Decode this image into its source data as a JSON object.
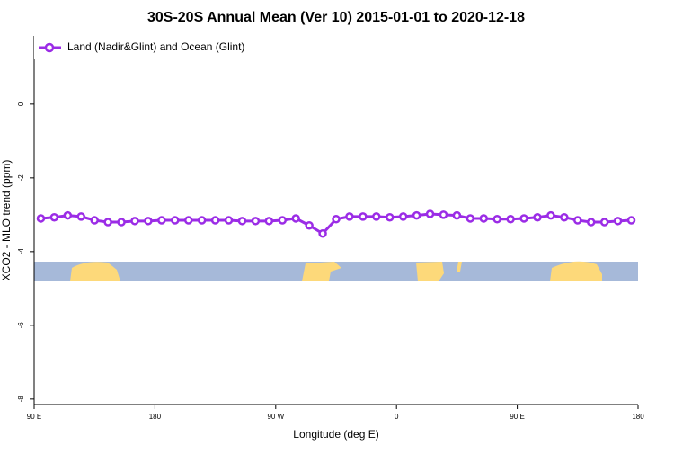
{
  "chart_data": {
    "type": "line",
    "title": "30S-20S Annual Mean (Ver 10)   2015-01-01 to 2020-12-18",
    "xlabel": "Longitude (deg E)",
    "ylabel": "XCO2 - MLO trend (ppm)",
    "x": [
      95,
      105,
      115,
      125,
      135,
      145,
      155,
      165,
      175,
      185,
      195,
      205,
      215,
      225,
      235,
      245,
      255,
      265,
      275,
      285,
      295,
      305,
      315,
      325,
      335,
      345,
      355,
      365,
      375,
      385,
      395,
      405,
      415,
      425,
      435,
      445,
      455,
      465,
      475,
      485,
      495,
      505,
      515,
      525,
      535
    ],
    "series": [
      {
        "name": "Land (Nadir&Glint) and Ocean (Glint)",
        "color": "#9b2ce6",
        "values": [
          -3.1,
          -3.07,
          -3.02,
          -3.05,
          -3.15,
          -3.2,
          -3.2,
          -3.17,
          -3.17,
          -3.15,
          -3.15,
          -3.15,
          -3.15,
          -3.15,
          -3.15,
          -3.17,
          -3.17,
          -3.17,
          -3.15,
          -3.1,
          -3.29,
          -3.51,
          -3.12,
          -3.05,
          -3.05,
          -3.05,
          -3.07,
          -3.05,
          -3.02,
          -2.98,
          -3.0,
          -3.02,
          -3.1,
          -3.1,
          -3.12,
          -3.12,
          -3.1,
          -3.07,
          -3.02,
          -3.07,
          -3.15,
          -3.2,
          -3.2,
          -3.17,
          -3.15
        ]
      }
    ],
    "xlim": [
      90,
      540
    ],
    "xticks": [
      {
        "value": 90,
        "label": "90 E"
      },
      180,
      {
        "value": 270,
        "label": "90 W"
      },
      {
        "value": 360,
        "label": "0"
      },
      {
        "value": 450,
        "label": "90 E"
      },
      {
        "value": 540,
        "label": "180"
      }
    ],
    "ylim": [
      -8.15,
      1.85
    ],
    "yticks": [
      0,
      -2,
      -4,
      -6,
      -8
    ],
    "legend": "top-left"
  }
}
